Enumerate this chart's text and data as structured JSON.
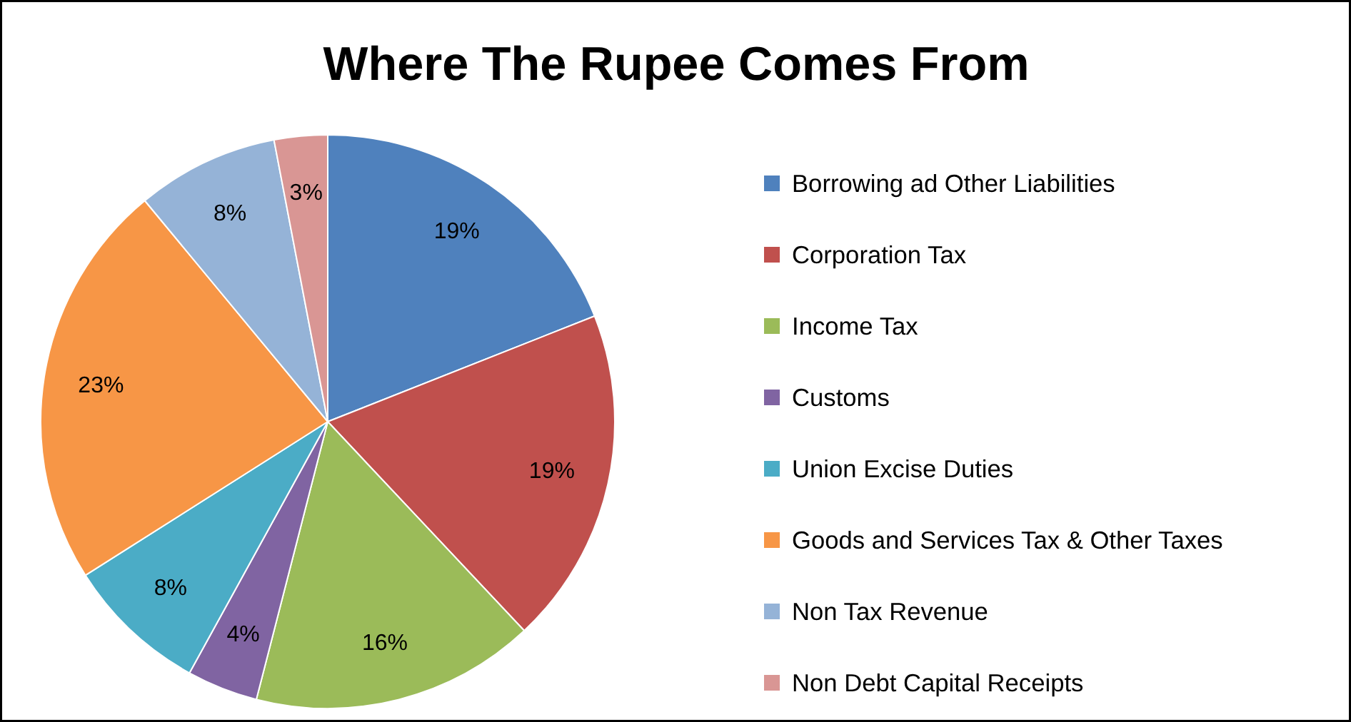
{
  "chart_data": {
    "type": "pie",
    "title": "Where The Rupee Comes From",
    "categories": [
      "Borrowing ad Other Liabilities",
      "Corporation Tax",
      "Income Tax",
      "Customs",
      "Union Excise Duties",
      "Goods and Services Tax & Other Taxes",
      "Non Tax Revenue",
      "Non Debt Capital Receipts"
    ],
    "values": [
      19,
      19,
      16,
      4,
      8,
      23,
      8,
      3
    ],
    "colors": [
      "#4f81bd",
      "#c0504d",
      "#9bbb59",
      "#8064a2",
      "#4bacc6",
      "#f79646",
      "#95b3d7",
      "#d99694"
    ],
    "value_labels": [
      "19%",
      "19%",
      "16%",
      "4%",
      "8%",
      "23%",
      "8%",
      "3%"
    ],
    "legend": "right"
  }
}
